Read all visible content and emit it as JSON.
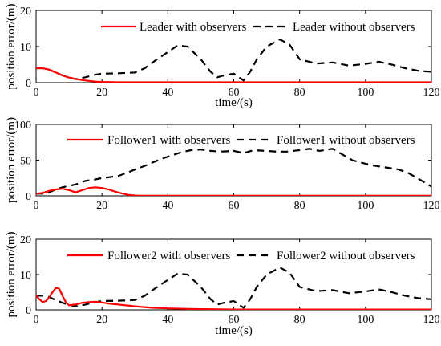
{
  "ylabel": "position error/(m)",
  "colors": {
    "with": "#ff0000",
    "without": "#000000"
  },
  "chart_data": [
    {
      "type": "line",
      "xlabel": "time/(s)",
      "xlim": [
        0,
        120
      ],
      "ylim": [
        0,
        20
      ],
      "xticks": [
        "0",
        "20",
        "40",
        "60",
        "80",
        "100",
        "120"
      ],
      "yticks": [
        "0",
        "10",
        "20"
      ],
      "grid": false,
      "legend_position": "top",
      "series": [
        {
          "name": "Leader with observers",
          "style": "solid",
          "color": "#ff0000",
          "x": [
            0,
            2,
            4,
            6,
            8,
            10,
            12,
            15,
            18,
            20,
            25,
            30,
            40,
            50,
            60,
            70,
            80,
            90,
            100,
            110,
            120
          ],
          "y": [
            4,
            4,
            3.6,
            2.8,
            2,
            1.4,
            1,
            0.6,
            0.3,
            0.2,
            0.1,
            0.1,
            0.1,
            0.1,
            0.1,
            0.1,
            0.1,
            0.1,
            0.1,
            0.1,
            0.1
          ]
        },
        {
          "name": "Leader without observers",
          "style": "dashed",
          "color": "#000000",
          "x": [
            0,
            2,
            4,
            6,
            8,
            10,
            12,
            15,
            18,
            20,
            25,
            30,
            33,
            36,
            40,
            43,
            46,
            50,
            53,
            55,
            57,
            60,
            62,
            63,
            65,
            67,
            70,
            74,
            77,
            80,
            85,
            90,
            95,
            100,
            104,
            108,
            112,
            116,
            120
          ],
          "y": [
            4,
            4,
            3.6,
            2.8,
            2,
            1.4,
            1,
            1.5,
            2.2,
            2.5,
            2.6,
            2.8,
            4,
            6,
            8.5,
            10.3,
            10,
            6.5,
            3,
            1.5,
            2,
            2.5,
            1.2,
            0.6,
            3,
            6.5,
            10,
            12,
            10.5,
            6.5,
            5.3,
            5.6,
            4.7,
            5.2,
            5.8,
            5,
            4,
            3.3,
            3
          ]
        }
      ]
    },
    {
      "type": "line",
      "xlabel": "",
      "xlim": [
        0,
        120
      ],
      "ylim": [
        0,
        100
      ],
      "xticks": [
        "0",
        "20",
        "40",
        "60",
        "80",
        "100",
        "120"
      ],
      "yticks": [
        "0",
        "50",
        "100"
      ],
      "grid": false,
      "legend_position": "top",
      "series": [
        {
          "name": "Follower1 with observers",
          "style": "solid",
          "color": "#ff0000",
          "x": [
            0,
            2,
            4,
            6,
            8,
            10,
            12,
            14,
            16,
            18,
            20,
            22,
            24,
            26,
            28,
            30,
            32,
            35,
            40,
            50,
            60,
            70,
            80,
            90,
            100,
            110,
            120
          ],
          "y": [
            3,
            4,
            7,
            9,
            10,
            8,
            5,
            8,
            11,
            12,
            11,
            9,
            6,
            3.5,
            1.5,
            0.5,
            0.2,
            0.1,
            0.1,
            0.1,
            0.1,
            0.1,
            0.1,
            0.1,
            0.1,
            0.1,
            0.1
          ]
        },
        {
          "name": "Follower1 without observers",
          "style": "dashed",
          "color": "#000000",
          "x": [
            0,
            2,
            4,
            6,
            8,
            10,
            12,
            15,
            18,
            20,
            22,
            25,
            28,
            30,
            33,
            36,
            40,
            44,
            47,
            50,
            53,
            56,
            60,
            63,
            66,
            70,
            73,
            76,
            80,
            83,
            86,
            90,
            93,
            96,
            100,
            103,
            106,
            110,
            113,
            116,
            120
          ],
          "y": [
            3,
            3,
            5,
            9,
            12,
            14,
            16,
            21,
            23,
            25,
            26,
            28,
            33,
            37,
            42,
            48,
            55,
            61,
            64,
            65,
            63,
            62,
            63,
            60,
            64,
            63,
            62,
            62,
            64,
            66,
            63,
            66,
            58,
            50,
            45,
            42,
            40,
            37,
            32,
            24,
            13
          ]
        }
      ]
    },
    {
      "type": "line",
      "xlabel": "time/(s)",
      "xlim": [
        0,
        120
      ],
      "ylim": [
        0,
        20
      ],
      "xticks": [
        "0",
        "20",
        "40",
        "60",
        "80",
        "100",
        "120"
      ],
      "yticks": [
        "0",
        "10",
        "20"
      ],
      "grid": false,
      "legend_position": "top",
      "series": [
        {
          "name": "Follower2 with observers",
          "style": "solid",
          "color": "#ff0000",
          "x": [
            0,
            1,
            2,
            3,
            4,
            5,
            6,
            7,
            8,
            9,
            10,
            12,
            14,
            16,
            18,
            20,
            22,
            25,
            30,
            35,
            40,
            45,
            50,
            60,
            70,
            80,
            90,
            100,
            110,
            120
          ],
          "y": [
            4,
            3,
            2.2,
            2.5,
            3.5,
            5,
            6.2,
            6,
            4,
            2.2,
            1.3,
            1.5,
            2,
            2.2,
            2.3,
            2.1,
            1.8,
            1.5,
            1,
            0.6,
            0.4,
            0.3,
            0.2,
            0.1,
            0.1,
            0.1,
            0.1,
            0.1,
            0.1,
            0.1
          ]
        },
        {
          "name": "Follower2 without observers",
          "style": "dashed",
          "color": "#000000",
          "x": [
            0,
            2,
            4,
            6,
            8,
            10,
            12,
            15,
            18,
            20,
            25,
            30,
            33,
            36,
            40,
            43,
            46,
            50,
            53,
            55,
            57,
            60,
            62,
            63,
            65,
            67,
            70,
            74,
            77,
            80,
            85,
            90,
            95,
            100,
            104,
            108,
            112,
            116,
            120
          ],
          "y": [
            4,
            4,
            3.6,
            2.8,
            2,
            1.4,
            1,
            1.5,
            2.2,
            2.5,
            2.6,
            2.8,
            4,
            6,
            8.5,
            10.3,
            10,
            6.5,
            3,
            1.5,
            2,
            2.5,
            1.2,
            0.6,
            3,
            6.5,
            10,
            12,
            10.5,
            6.5,
            5.3,
            5.6,
            4.7,
            5.2,
            5.8,
            5,
            4,
            3.3,
            3
          ]
        }
      ]
    }
  ]
}
